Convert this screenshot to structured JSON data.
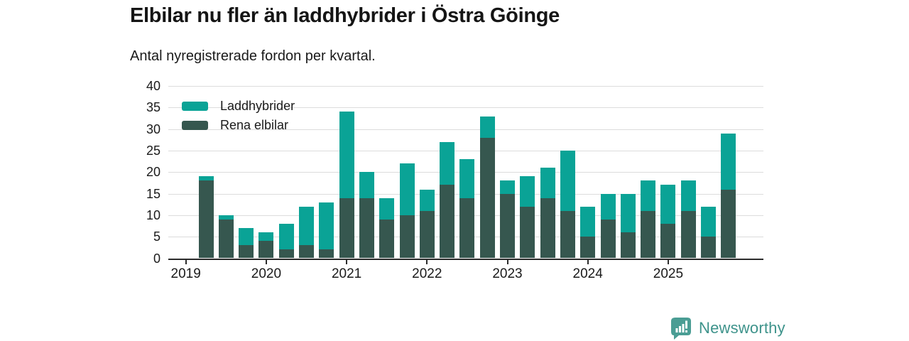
{
  "header": {
    "title": "Elbilar nu fler än laddhybrider i Östra Göinge",
    "subtitle": "Antal nyregistrerade fordon per kvartal."
  },
  "branding": {
    "logo_text": "Newsworthy",
    "logo_color": "#3e938b"
  },
  "colors": {
    "hybrid_teal": "#0aa396",
    "ev_dark": "#36574f",
    "gridline": "#dcdcdc",
    "axis": "#2b2b2b"
  },
  "chart_data": {
    "type": "bar",
    "stacked": true,
    "title": "Elbilar nu fler än laddhybrider i Östra Göinge",
    "subtitle": "Antal nyregistrerade fordon per kvartal.",
    "xlabel": "",
    "ylabel": "",
    "ylim": [
      0,
      40
    ],
    "y_ticks": [
      0,
      5,
      10,
      15,
      20,
      25,
      30,
      35,
      40
    ],
    "grid": true,
    "x_year_labels": [
      "2019",
      "2020",
      "2021",
      "2022",
      "2023",
      "2024",
      "2025"
    ],
    "quarters": [
      "2019 Q2",
      "2019 Q3",
      "2019 Q4",
      "2020 Q1",
      "2020 Q2",
      "2020 Q3",
      "2020 Q4",
      "2021 Q1",
      "2021 Q2",
      "2021 Q3",
      "2021 Q4",
      "2022 Q1",
      "2022 Q2",
      "2022 Q3",
      "2022 Q4",
      "2023 Q1",
      "2023 Q2",
      "2023 Q3",
      "2023 Q4",
      "2024 Q1",
      "2024 Q2",
      "2024 Q3",
      "2024 Q4",
      "2025 Q1",
      "2025 Q2",
      "2025 Q3",
      "2025 Q4"
    ],
    "legend_position": "top-left-inside",
    "series": [
      {
        "name": "Rena elbilar",
        "color": "#36574f",
        "values": [
          18,
          9,
          3,
          4,
          2,
          3,
          2,
          14,
          14,
          9,
          10,
          11,
          17,
          14,
          28,
          15,
          12,
          14,
          11,
          5,
          9,
          6,
          11,
          8,
          11,
          5,
          16
        ]
      },
      {
        "name": "Laddhybrider",
        "color": "#0aa396",
        "values": [
          1,
          1,
          4,
          2,
          6,
          9,
          11,
          20,
          6,
          5,
          12,
          5,
          10,
          9,
          5,
          3,
          7,
          7,
          14,
          7,
          6,
          9,
          7,
          9,
          7,
          7,
          13
        ]
      }
    ],
    "totals": [
      19,
      10,
      7,
      6,
      8,
      12,
      13,
      34,
      20,
      14,
      22,
      16,
      27,
      23,
      33,
      18,
      19,
      21,
      25,
      12,
      15,
      15,
      18,
      17,
      18,
      12,
      29
    ]
  },
  "legend": {
    "items": [
      {
        "label": "Laddhybrider",
        "color": "#0aa396"
      },
      {
        "label": "Rena elbilar",
        "color": "#36574f"
      }
    ]
  }
}
